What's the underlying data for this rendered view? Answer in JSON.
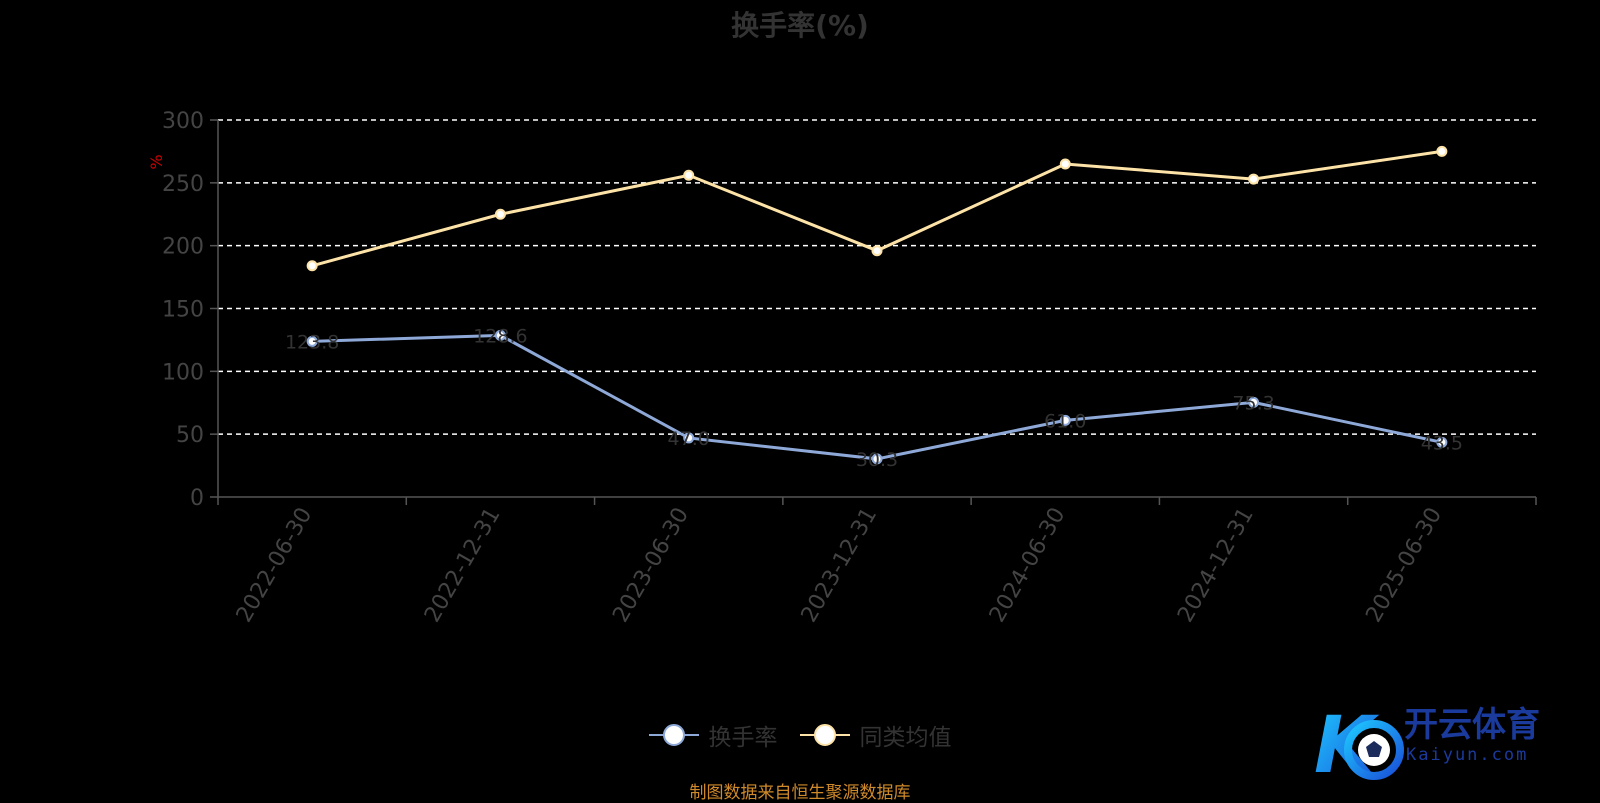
{
  "page": {
    "source_note": "制图数据来自恒生聚源数据库",
    "logo_text": "开云体育",
    "logo_subtext": "Kaiyun.com"
  },
  "chart_data": {
    "type": "line",
    "title": "换手率(%)",
    "ylabel": "%",
    "ylim": [
      0,
      300
    ],
    "yticks": [
      0,
      50,
      100,
      150,
      200,
      250,
      300
    ],
    "grid": true,
    "legend_position": "bottom",
    "categories": [
      "2022-06-30",
      "2022-12-31",
      "2023-06-30",
      "2023-12-31",
      "2024-06-30",
      "2024-12-31",
      "2025-06-30"
    ],
    "series": [
      {
        "name": "换手率",
        "color": "#8ea9d8",
        "values": [
          123.8,
          128.6,
          47.0,
          30.3,
          61.0,
          75.3,
          43.5
        ],
        "data_labels": [
          "123.8",
          "128.6",
          "47.0",
          "30.3",
          "61.0",
          "75.3",
          "43.5"
        ]
      },
      {
        "name": "同类均值",
        "color": "#fde3a7",
        "values": [
          184,
          225,
          256,
          196,
          265,
          253,
          275
        ]
      }
    ],
    "colors": {
      "axis": "#555555",
      "tick_label": "#444444",
      "grid": "#ffffff",
      "ylabel": "#cc0000"
    }
  }
}
